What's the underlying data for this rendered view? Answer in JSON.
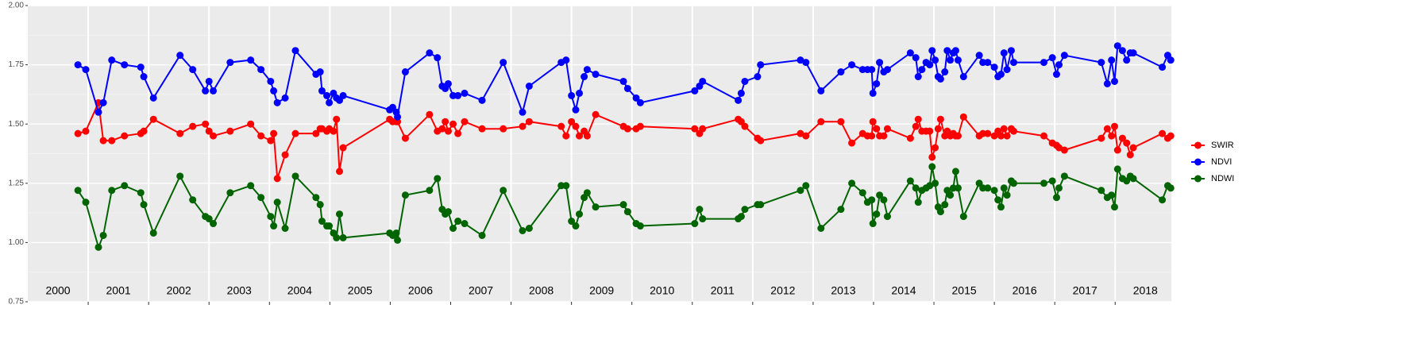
{
  "chart_data": {
    "type": "line",
    "x": [
      2000.83,
      2000.96,
      2001.17,
      2001.25,
      2001.39,
      2001.6,
      2001.87,
      2001.92,
      2002.08,
      2002.52,
      2002.73,
      2002.94,
      2003.0,
      2003.07,
      2003.35,
      2003.69,
      2003.86,
      2004.02,
      2004.07,
      2004.13,
      2004.26,
      2004.43,
      2004.77,
      2004.84,
      2004.87,
      2004.95,
      2004.99,
      2005.06,
      2005.11,
      2005.16,
      2005.22,
      2005.99,
      2006.04,
      2006.1,
      2006.12,
      2006.25,
      2006.65,
      2006.78,
      2006.86,
      2006.91,
      2006.96,
      2007.04,
      2007.12,
      2007.23,
      2007.52,
      2007.87,
      2008.19,
      2008.3,
      2008.83,
      2008.91,
      2009.0,
      2009.07,
      2009.13,
      2009.21,
      2009.26,
      2009.4,
      2009.86,
      2009.93,
      2010.07,
      2010.14,
      2011.04,
      2011.12,
      2011.17,
      2011.76,
      2011.81,
      2011.87,
      2012.08,
      2012.13,
      2012.79,
      2012.88,
      2013.13,
      2013.46,
      2013.64,
      2013.82,
      2013.9,
      2013.97,
      2013.99,
      2014.05,
      2014.1,
      2014.17,
      2014.23,
      2014.61,
      2014.7,
      2014.74,
      2014.8,
      2014.87,
      2014.93,
      2014.97,
      2015.02,
      2015.07,
      2015.11,
      2015.18,
      2015.22,
      2015.27,
      2015.32,
      2015.36,
      2015.4,
      2015.49,
      2015.75,
      2015.81,
      2015.89,
      2016.0,
      2016.06,
      2016.11,
      2016.16,
      2016.21,
      2016.28,
      2016.32,
      2016.82,
      2016.96,
      2017.03,
      2017.07,
      2017.16,
      2017.77,
      2017.87,
      2017.94,
      2017.99,
      2018.04,
      2018.12,
      2018.19,
      2018.25,
      2018.3,
      2018.78,
      2018.87,
      2018.92
    ],
    "series": [
      {
        "name": "SWIR",
        "color": "#ff0000",
        "values": [
          1.46,
          1.47,
          1.59,
          1.43,
          1.43,
          1.45,
          1.46,
          1.47,
          1.52,
          1.46,
          1.49,
          1.5,
          1.47,
          1.45,
          1.47,
          1.5,
          1.45,
          1.43,
          1.46,
          1.27,
          1.37,
          1.46,
          1.46,
          1.48,
          1.48,
          1.47,
          1.48,
          1.47,
          1.52,
          1.3,
          1.4,
          1.52,
          1.51,
          1.51,
          1.51,
          1.44,
          1.54,
          1.47,
          1.48,
          1.51,
          1.47,
          1.5,
          1.46,
          1.51,
          1.48,
          1.48,
          1.49,
          1.51,
          1.49,
          1.45,
          1.51,
          1.49,
          1.45,
          1.47,
          1.45,
          1.54,
          1.49,
          1.48,
          1.48,
          1.49,
          1.48,
          1.46,
          1.48,
          1.52,
          1.51,
          1.49,
          1.44,
          1.43,
          1.46,
          1.45,
          1.51,
          1.51,
          1.42,
          1.46,
          1.45,
          1.45,
          1.51,
          1.48,
          1.45,
          1.45,
          1.48,
          1.44,
          1.49,
          1.52,
          1.47,
          1.47,
          1.47,
          1.36,
          1.4,
          1.48,
          1.52,
          1.45,
          1.47,
          1.45,
          1.46,
          1.45,
          1.45,
          1.53,
          1.45,
          1.46,
          1.46,
          1.45,
          1.47,
          1.45,
          1.48,
          1.45,
          1.48,
          1.47,
          1.45,
          1.42,
          1.41,
          1.4,
          1.39,
          1.44,
          1.48,
          1.45,
          1.49,
          1.39,
          1.44,
          1.42,
          1.37,
          1.4,
          1.46,
          1.44,
          1.45
        ]
      },
      {
        "name": "NDVI",
        "color": "#0000ff",
        "values": [
          1.75,
          1.73,
          1.55,
          1.59,
          1.77,
          1.75,
          1.74,
          1.7,
          1.61,
          1.79,
          1.73,
          1.64,
          1.68,
          1.64,
          1.76,
          1.77,
          1.73,
          1.68,
          1.64,
          1.59,
          1.61,
          1.81,
          1.71,
          1.72,
          1.64,
          1.62,
          1.59,
          1.63,
          1.61,
          1.6,
          1.62,
          1.56,
          1.57,
          1.55,
          1.53,
          1.72,
          1.8,
          1.78,
          1.66,
          1.65,
          1.67,
          1.62,
          1.62,
          1.63,
          1.6,
          1.76,
          1.55,
          1.66,
          1.76,
          1.77,
          1.62,
          1.56,
          1.63,
          1.7,
          1.73,
          1.71,
          1.68,
          1.65,
          1.61,
          1.59,
          1.64,
          1.66,
          1.68,
          1.6,
          1.63,
          1.68,
          1.7,
          1.75,
          1.77,
          1.76,
          1.64,
          1.72,
          1.75,
          1.73,
          1.73,
          1.73,
          1.63,
          1.67,
          1.76,
          1.72,
          1.73,
          1.8,
          1.78,
          1.7,
          1.73,
          1.76,
          1.75,
          1.81,
          1.77,
          1.7,
          1.69,
          1.72,
          1.81,
          1.77,
          1.8,
          1.81,
          1.77,
          1.7,
          1.79,
          1.76,
          1.76,
          1.74,
          1.7,
          1.71,
          1.8,
          1.73,
          1.81,
          1.76,
          1.76,
          1.78,
          1.71,
          1.75,
          1.79,
          1.76,
          1.67,
          1.77,
          1.68,
          1.83,
          1.81,
          1.77,
          1.8,
          1.8,
          1.74,
          1.79,
          1.77
        ]
      },
      {
        "name": "NDWI",
        "color": "#006400",
        "values": [
          1.22,
          1.17,
          0.98,
          1.03,
          1.22,
          1.24,
          1.21,
          1.16,
          1.04,
          1.28,
          1.18,
          1.11,
          1.1,
          1.08,
          1.21,
          1.24,
          1.19,
          1.11,
          1.07,
          1.17,
          1.06,
          1.28,
          1.19,
          1.16,
          1.09,
          1.07,
          1.07,
          1.04,
          1.02,
          1.12,
          1.02,
          1.04,
          1.03,
          1.04,
          1.01,
          1.2,
          1.22,
          1.27,
          1.14,
          1.12,
          1.13,
          1.06,
          1.09,
          1.08,
          1.03,
          1.22,
          1.05,
          1.06,
          1.24,
          1.24,
          1.09,
          1.07,
          1.12,
          1.19,
          1.21,
          1.15,
          1.16,
          1.13,
          1.08,
          1.07,
          1.08,
          1.14,
          1.1,
          1.1,
          1.11,
          1.14,
          1.16,
          1.16,
          1.22,
          1.24,
          1.06,
          1.14,
          1.25,
          1.21,
          1.17,
          1.18,
          1.08,
          1.12,
          1.2,
          1.18,
          1.11,
          1.26,
          1.23,
          1.17,
          1.22,
          1.23,
          1.24,
          1.32,
          1.25,
          1.15,
          1.13,
          1.16,
          1.22,
          1.2,
          1.23,
          1.3,
          1.23,
          1.11,
          1.25,
          1.23,
          1.23,
          1.22,
          1.18,
          1.15,
          1.23,
          1.2,
          1.26,
          1.25,
          1.25,
          1.26,
          1.19,
          1.23,
          1.28,
          1.22,
          1.19,
          1.2,
          1.15,
          1.31,
          1.27,
          1.26,
          1.28,
          1.27,
          1.18,
          1.24,
          1.23
        ]
      }
    ],
    "xlim": [
      2000,
      2018.93
    ],
    "xticks": [
      2001,
      2002,
      2003,
      2004,
      2005,
      2006,
      2007,
      2008,
      2009,
      2010,
      2011,
      2012,
      2013,
      2014,
      2015,
      2016,
      2017,
      2018
    ],
    "year_labels": [
      "2000",
      "2001",
      "2002",
      "2003",
      "2004",
      "2005",
      "2006",
      "2007",
      "2008",
      "2009",
      "2010",
      "2011",
      "2012",
      "2013",
      "2014",
      "2015",
      "2016",
      "2017",
      "2018"
    ],
    "ylim": [
      0.75,
      2.0
    ],
    "yticks": [
      {
        "value": 0.75,
        "label": "0.75"
      },
      {
        "value": 1.0,
        "label": "1.00"
      },
      {
        "value": 1.25,
        "label": "1.25"
      },
      {
        "value": 1.5,
        "label": "1.50"
      },
      {
        "value": 1.75,
        "label": "1.75"
      },
      {
        "value": 2.0,
        "label": "2.00"
      }
    ],
    "yminor_ticks": [
      0.875,
      1.125,
      1.375,
      1.625,
      1.875
    ],
    "grid": true,
    "legend": "right"
  }
}
